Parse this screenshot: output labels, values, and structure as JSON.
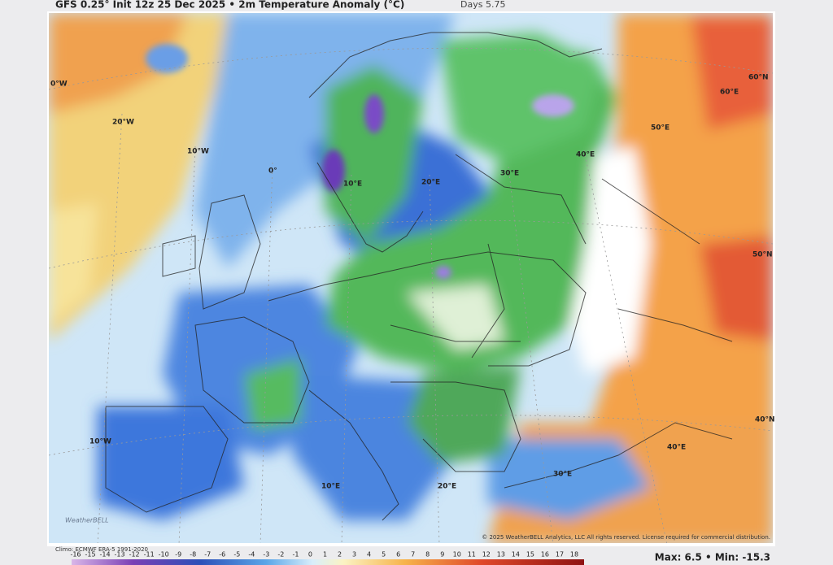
{
  "header": {
    "title": "GFS 0.25° Init 12z 25 Dec 2025 • 2m Temperature Anomaly (°C)",
    "subtitle": "Days 5.75"
  },
  "map_labels": [
    "0°W",
    "20°W",
    "10°W",
    "0°",
    "10°E",
    "20°E",
    "30°E",
    "40°E",
    "50°E",
    "60°E",
    "60°N",
    "50°N",
    "40°N",
    "10°W",
    "10°E",
    "20°E",
    "30°E",
    "40°E"
  ],
  "footer": {
    "climo": "Climo: ECMWF ERA-5 1991-2020",
    "copyright": "© 2025 WeatherBELL Analytics, LLC All rights reserved. License required for commercial distribution.",
    "logo": "WeatherBELL",
    "extremes": "Max: 6.5 • Min: -15.3"
  },
  "colorbar": {
    "ticks": [
      -16,
      -15,
      -14,
      -13,
      -12,
      -11,
      -10,
      -9,
      -8,
      -7,
      -6,
      -5,
      -4,
      -3,
      -2,
      -1,
      0,
      1,
      2,
      3,
      4,
      5,
      6,
      7,
      8,
      9,
      10,
      11,
      12,
      13,
      14,
      15,
      16,
      17,
      18
    ]
  }
}
